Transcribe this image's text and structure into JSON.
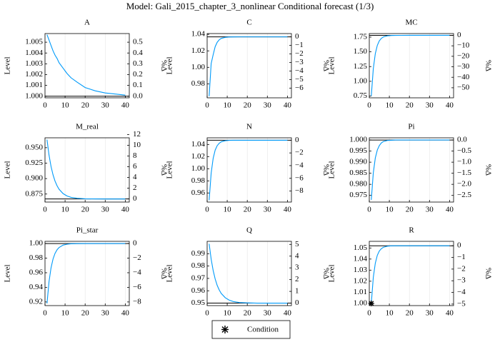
{
  "title": "Model: Gali_2015_chapter_3_nonlinear        Conditional forecast   (1/3)",
  "legend": {
    "label": "Condition"
  },
  "chart_data": [
    {
      "type": "line",
      "title": "A",
      "ylabel": "Level",
      "y2label": "%Δ",
      "color": "#009af9",
      "hline": 1.0,
      "grid": "x",
      "x": [
        1,
        2,
        3,
        4,
        5,
        6,
        7,
        9,
        11,
        13,
        16,
        20,
        25,
        30,
        35,
        40
      ],
      "values": [
        1.0057,
        1.0052,
        1.0047,
        1.0042,
        1.0038,
        1.0035,
        1.0031,
        1.0026,
        1.0021,
        1.0017,
        1.0013,
        1.0008,
        1.0005,
        1.0003,
        1.0002,
        1.0001
      ],
      "xlim": [
        0,
        42
      ],
      "xticks": [
        0,
        10,
        20,
        30,
        40
      ],
      "ylim": [
        0.99985,
        1.0058
      ],
      "yticks": [
        {
          "value": 1.0,
          "label": "1.000"
        },
        1.001,
        1.002,
        1.003,
        1.004,
        1.005
      ],
      "y2lim": [
        -0.015,
        0.58
      ],
      "y2ticks": [
        {
          "value": 0,
          "label": "0.0"
        },
        0.1,
        0.2,
        0.3,
        0.4,
        0.5
      ]
    },
    {
      "type": "line",
      "title": "C",
      "ylabel": "Level",
      "y2label": "%Δ",
      "color": "#009af9",
      "hline": 1.037,
      "grid": "x",
      "x": [
        1,
        2,
        3,
        4,
        5,
        6,
        7,
        9,
        11,
        13,
        16,
        20,
        25,
        30,
        35,
        40
      ],
      "values": [
        0.965,
        1.0045,
        1.0153,
        1.0251,
        1.0304,
        1.0334,
        1.0351,
        1.0364,
        1.0368,
        1.0369,
        1.037,
        1.037,
        1.037,
        1.037,
        1.037,
        1.037
      ],
      "xlim": [
        0,
        42
      ],
      "xticks": [
        0,
        10,
        20,
        30,
        40
      ],
      "ylim": [
        0.963,
        1.041
      ],
      "yticks": [
        0.98,
        {
          "value": 1.0,
          "label": "1.00"
        },
        1.02,
        1.04
      ],
      "y2lim": [
        -7.14,
        0.386
      ],
      "y2ticks": [
        0,
        {
          "value": -1,
          "label": "−1"
        },
        {
          "value": -2,
          "label": "−2"
        },
        {
          "value": -3,
          "label": "−3"
        },
        {
          "value": -4,
          "label": "−4"
        },
        {
          "value": -5,
          "label": "−5"
        },
        {
          "value": -6,
          "label": "−6"
        }
      ]
    },
    {
      "type": "line",
      "title": "MC",
      "ylabel": "Level",
      "y2label": "%Δ",
      "color": "#009af9",
      "hline": 1.78,
      "grid": "x",
      "x": [
        1,
        2,
        3,
        4,
        5,
        6,
        7,
        9,
        11,
        13,
        16,
        20,
        25,
        30,
        35,
        40
      ],
      "values": [
        0.75,
        1.2145,
        1.47,
        1.61,
        1.6863,
        1.7285,
        1.7522,
        1.7716,
        1.7774,
        1.7793,
        1.7799,
        1.78,
        1.78,
        1.78,
        1.78,
        1.78
      ],
      "xlim": [
        0,
        42
      ],
      "xticks": [
        0,
        10,
        20,
        30,
        40
      ],
      "ylim": [
        0.72,
        1.81
      ],
      "yticks": [
        0.75,
        {
          "value": 1.0,
          "label": "1.00"
        },
        1.25,
        {
          "value": 1.5,
          "label": "1.50"
        },
        1.75
      ],
      "y2lim": [
        -59.6,
        1.7
      ],
      "y2ticks": [
        0,
        {
          "value": -10,
          "label": "−10"
        },
        {
          "value": -20,
          "label": "−20"
        },
        {
          "value": -30,
          "label": "−30"
        },
        {
          "value": -40,
          "label": "−40"
        },
        {
          "value": -50,
          "label": "−50"
        }
      ]
    },
    {
      "type": "line",
      "title": "M_real",
      "ylabel": "Level",
      "y2label": "%Δ",
      "color": "#009af9",
      "hline": 0.867,
      "grid": "x",
      "x": [
        1,
        2,
        3,
        4,
        5,
        6,
        7,
        9,
        11,
        13,
        16,
        20,
        25,
        30,
        35,
        40
      ],
      "values": [
        0.963,
        0.9381,
        0.9197,
        0.9061,
        0.8959,
        0.8884,
        0.8828,
        0.8757,
        0.8718,
        0.8696,
        0.8681,
        0.8673,
        0.8671,
        0.867,
        0.867,
        0.867
      ],
      "xlim": [
        0,
        42
      ],
      "xticks": [
        0,
        10,
        20,
        30,
        40
      ],
      "ylim": [
        0.862,
        0.966
      ],
      "yticks": [
        0.875,
        {
          "value": 0.9,
          "label": "0.900"
        },
        0.925,
        {
          "value": 0.95,
          "label": "0.950"
        }
      ],
      "y2lim": [
        -0.58,
        11.4
      ],
      "y2ticks": [
        0,
        2,
        4,
        6,
        8,
        10,
        12
      ]
    },
    {
      "type": "line",
      "title": "N",
      "ylabel": "Level",
      "y2label": "%Δ",
      "color": "#009af9",
      "hline": 1.047,
      "grid": "x",
      "x": [
        1,
        2,
        3,
        4,
        5,
        6,
        7,
        9,
        11,
        13,
        16,
        20,
        25,
        30,
        35,
        40
      ],
      "values": [
        0.948,
        0.9926,
        1.0172,
        1.0307,
        1.038,
        1.042,
        1.0443,
        1.0462,
        1.0468,
        1.0469,
        1.047,
        1.047,
        1.047,
        1.047,
        1.047,
        1.047
      ],
      "xlim": [
        0,
        42
      ],
      "xticks": [
        0,
        10,
        20,
        30,
        40
      ],
      "ylim": [
        0.945,
        1.051
      ],
      "yticks": [
        0.96,
        0.98,
        {
          "value": 1.0,
          "label": "1.00"
        },
        1.02,
        1.04
      ],
      "y2lim": [
        -9.74,
        0.38
      ],
      "y2ticks": [
        0,
        {
          "value": -2,
          "label": "−2"
        },
        {
          "value": -4,
          "label": "−4"
        },
        {
          "value": -6,
          "label": "−6"
        },
        {
          "value": -8,
          "label": "−8"
        }
      ]
    },
    {
      "type": "line",
      "title": "Pi",
      "ylabel": "Level",
      "y2label": "%Δ",
      "color": "#009af9",
      "hline": 1.0,
      "grid": "x",
      "x": [
        1,
        2,
        3,
        4,
        5,
        6,
        7,
        9,
        11,
        13,
        16,
        20,
        25,
        30,
        35,
        40
      ],
      "values": [
        0.973,
        0.9852,
        0.9919,
        0.9955,
        0.9975,
        0.9987,
        0.9993,
        0.9998,
        0.9999,
        1.0,
        1.0,
        1.0,
        1.0,
        1.0,
        1.0,
        1.0
      ],
      "xlim": [
        0,
        42
      ],
      "xticks": [
        0,
        10,
        20,
        30,
        40
      ],
      "ylim": [
        0.972,
        1.001
      ],
      "yticks": [
        0.975,
        {
          "value": 0.98,
          "label": "0.980"
        },
        0.985,
        {
          "value": 0.99,
          "label": "0.990"
        },
        0.995,
        {
          "value": 1.0,
          "label": "1.000"
        }
      ],
      "y2lim": [
        -2.8,
        0.1
      ],
      "y2ticks": [
        {
          "value": 0,
          "label": "0.0"
        },
        {
          "value": -0.5,
          "label": "−0.5"
        },
        {
          "value": -1,
          "label": "−1.0"
        },
        {
          "value": -1.5,
          "label": "−1.5"
        },
        {
          "value": -2,
          "label": "−2.0"
        },
        {
          "value": -2.5,
          "label": "−2.5"
        }
      ]
    },
    {
      "type": "line",
      "title": "Pi_star",
      "ylabel": "Level",
      "y2label": "%Δ",
      "color": "#009af9",
      "hline": 1.0,
      "grid": "x",
      "x": [
        1,
        2,
        3,
        4,
        5,
        6,
        7,
        9,
        11,
        13,
        16,
        20,
        25,
        30,
        35,
        40
      ],
      "values": [
        0.918,
        0.9477,
        0.9666,
        0.9788,
        0.9865,
        0.9914,
        0.9945,
        0.9978,
        0.9991,
        0.9996,
        0.9999,
        1.0,
        1.0,
        1.0,
        1.0,
        1.0
      ],
      "xlim": [
        0,
        42
      ],
      "xticks": [
        0,
        10,
        20,
        30,
        40
      ],
      "ylim": [
        0.915,
        1.003
      ],
      "yticks": [
        0.92,
        0.94,
        0.96,
        0.98,
        {
          "value": 1.0,
          "label": "1.00"
        }
      ],
      "y2lim": [
        -8.5,
        0.3
      ],
      "y2ticks": [
        0,
        {
          "value": -2,
          "label": "−2"
        },
        {
          "value": -4,
          "label": "−4"
        },
        {
          "value": -6,
          "label": "−6"
        },
        {
          "value": -8,
          "label": "−8"
        }
      ]
    },
    {
      "type": "line",
      "title": "Q",
      "ylabel": "Level",
      "y2label": "%Δ",
      "color": "#009af9",
      "hline": 0.95,
      "grid": "x",
      "x": [
        1,
        2,
        3,
        4,
        5,
        6,
        7,
        9,
        11,
        13,
        16,
        20,
        25,
        30,
        35,
        40
      ],
      "values": [
        0.998,
        0.9856,
        0.9764,
        0.9695,
        0.9644,
        0.9607,
        0.9579,
        0.9544,
        0.9524,
        0.9513,
        0.9505,
        0.9502,
        0.95,
        0.95,
        0.95,
        0.95
      ],
      "xlim": [
        0,
        42
      ],
      "xticks": [
        0,
        10,
        20,
        30,
        40
      ],
      "ylim": [
        0.948,
        1.0
      ],
      "yticks": [
        0.95,
        0.96,
        0.97,
        0.98,
        0.99
      ],
      "y2lim": [
        -0.21,
        5.26
      ],
      "y2ticks": [
        0,
        1,
        2,
        3,
        4,
        5
      ]
    },
    {
      "type": "line",
      "title": "R",
      "ylabel": "Level",
      "y2label": "%Δ",
      "color": "#009af9",
      "hline": 1.052,
      "grid": "x",
      "x": [
        1,
        2,
        3,
        4,
        5,
        6,
        7,
        9,
        11,
        13,
        16,
        20,
        25,
        30,
        35,
        40
      ],
      "values": [
        1.0,
        1.0235,
        1.0363,
        1.0434,
        1.0473,
        1.0494,
        1.0506,
        1.0516,
        1.0519,
        1.052,
        1.052,
        1.052,
        1.052,
        1.052,
        1.052,
        1.052
      ],
      "conditions": {
        "x": [
          1
        ],
        "values": [
          1.0
        ]
      },
      "xlim": [
        0,
        42
      ],
      "xticks": [
        0,
        10,
        20,
        30,
        40
      ],
      "ylim": [
        0.998,
        1.056
      ],
      "yticks": [
        {
          "value": 1.0,
          "label": "1.00"
        },
        1.01,
        1.02,
        1.03,
        1.04,
        1.05
      ],
      "y2lim": [
        -5.13,
        0.38
      ],
      "y2ticks": [
        0,
        {
          "value": -1,
          "label": "−1"
        },
        {
          "value": -2,
          "label": "−2"
        },
        {
          "value": -3,
          "label": "−3"
        },
        {
          "value": -4,
          "label": "−4"
        },
        {
          "value": -5,
          "label": "−5"
        }
      ]
    }
  ]
}
